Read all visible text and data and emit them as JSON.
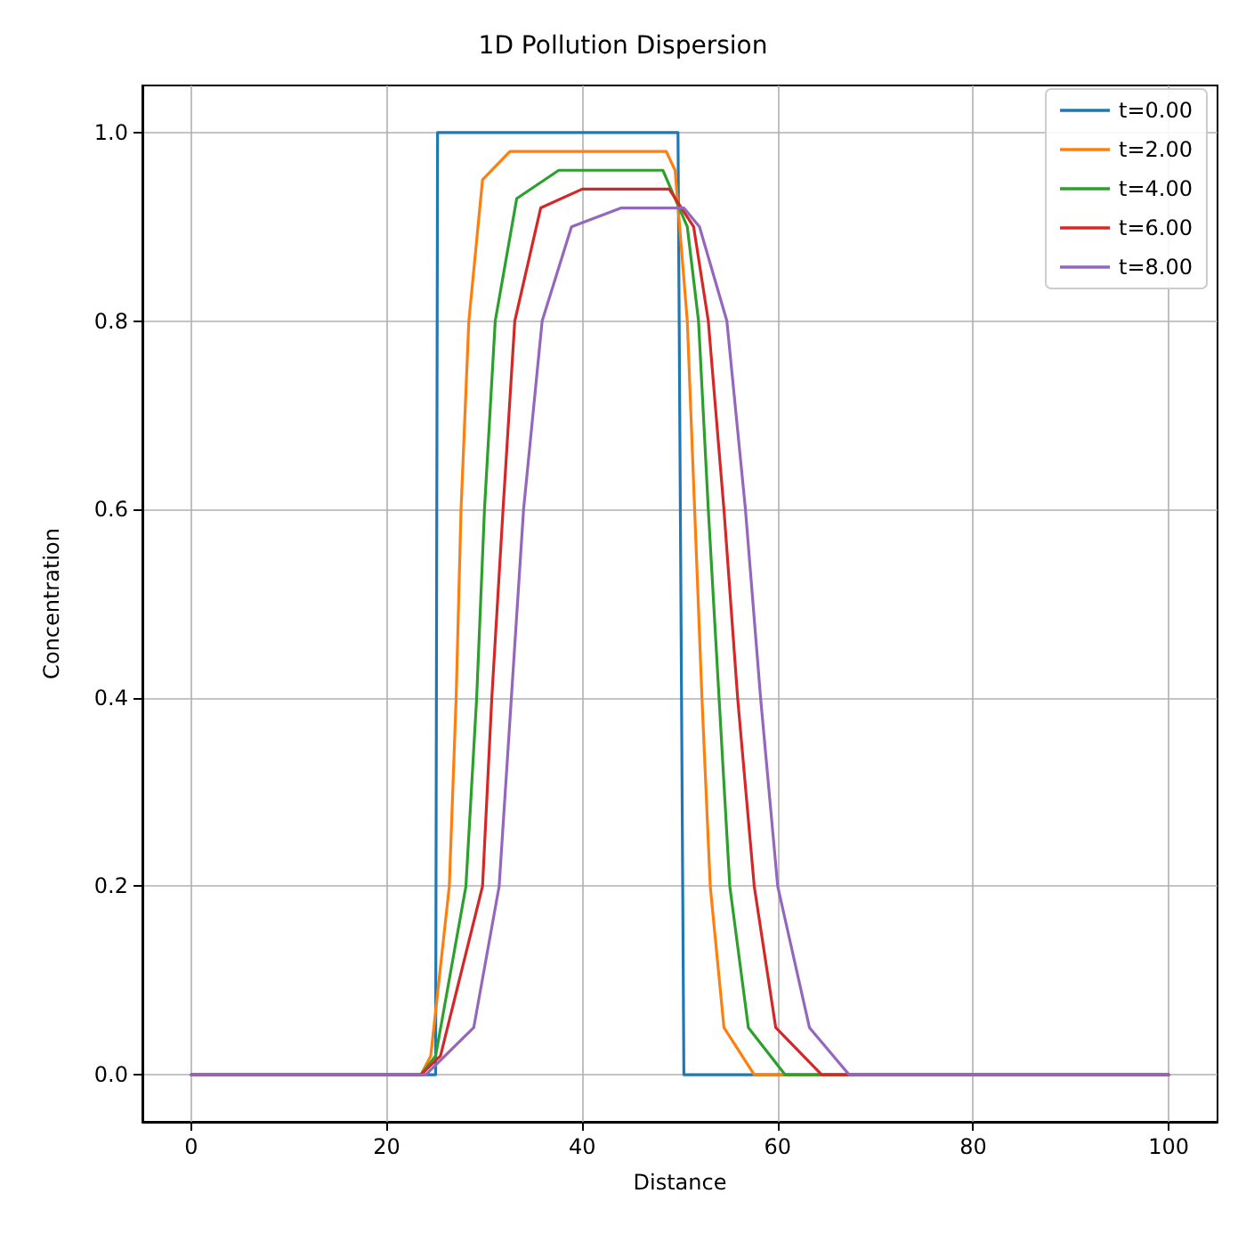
{
  "chart_data": {
    "type": "line",
    "title": "1D Pollution Dispersion",
    "xlabel": "Distance",
    "ylabel": "Concentration",
    "xlim": [
      -5,
      105
    ],
    "ylim": [
      -0.05,
      1.05
    ],
    "xticks": [
      0,
      20,
      40,
      60,
      80,
      100
    ],
    "yticks": [
      {
        "value": 0,
        "label": "0.0"
      },
      {
        "value": 0.2,
        "label": "0.2"
      },
      {
        "value": 0.4,
        "label": "0.4"
      },
      {
        "value": 0.6,
        "label": "0.6"
      },
      {
        "value": 0.8,
        "label": "0.8"
      },
      {
        "value": 1,
        "label": "1.0"
      }
    ],
    "grid": true,
    "legend": "top right",
    "marker": "none",
    "line_style": "solid",
    "series": [
      {
        "name": "t=0.00",
        "color": "#1f77b4",
        "x": [
          0,
          25,
          25.2,
          49.8,
          50.4,
          100
        ],
        "values": [
          0,
          0,
          1,
          1,
          0,
          0
        ]
      },
      {
        "name": "t=2.00",
        "color": "#ff7f0e",
        "x": [
          0,
          23.5,
          24.5,
          26.4,
          27.1,
          27.6,
          28.4,
          29.8,
          32.6,
          48.6,
          49.5,
          50.75,
          51.5,
          52.25,
          53.1,
          54.5,
          57.6,
          100
        ],
        "values": [
          0,
          0,
          0.02,
          0.2,
          0.4,
          0.6,
          0.8,
          0.95,
          0.98,
          0.98,
          0.96,
          0.8,
          0.6,
          0.4,
          0.2,
          0.05,
          0,
          0
        ]
      },
      {
        "name": "t=4.00",
        "color": "#2ca02c",
        "x": [
          0,
          23.5,
          25,
          28.1,
          29.2,
          30,
          31.1,
          33.3,
          37.6,
          48.25,
          50.75,
          51.9,
          52.9,
          54,
          55.1,
          57,
          60.75,
          100
        ],
        "values": [
          0,
          0,
          0.02,
          0.2,
          0.4,
          0.6,
          0.8,
          0.93,
          0.96,
          0.96,
          0.9,
          0.8,
          0.6,
          0.4,
          0.2,
          0.05,
          0,
          0
        ]
      },
      {
        "name": "t=6.00",
        "color": "#d62728",
        "x": [
          0,
          23.5,
          25.5,
          29.8,
          30.75,
          31.9,
          33.1,
          35.75,
          40,
          48.9,
          51.4,
          52.9,
          54.5,
          55.9,
          57.6,
          59.8,
          64.5,
          100
        ],
        "values": [
          0,
          0,
          0.02,
          0.2,
          0.4,
          0.6,
          0.8,
          0.92,
          0.94,
          0.94,
          0.9,
          0.8,
          0.6,
          0.4,
          0.2,
          0.05,
          0,
          0
        ]
      },
      {
        "name": "t=8.00",
        "color": "#9467bd",
        "x": [
          0,
          24,
          28.9,
          31.5,
          32.75,
          34,
          35.9,
          38.9,
          44,
          50.4,
          52,
          54.8,
          56.7,
          58.25,
          60,
          63.25,
          67.3,
          100
        ],
        "values": [
          0,
          0,
          0.05,
          0.2,
          0.4,
          0.6,
          0.8,
          0.9,
          0.92,
          0.92,
          0.9,
          0.8,
          0.6,
          0.4,
          0.2,
          0.05,
          0,
          0
        ]
      }
    ]
  }
}
